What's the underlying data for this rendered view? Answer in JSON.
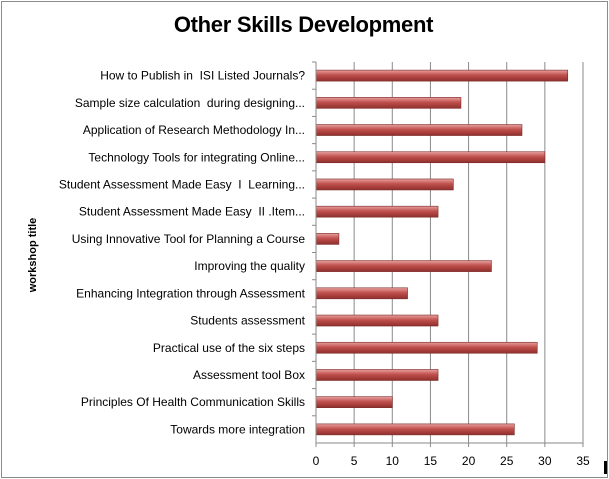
{
  "chart_data": {
    "type": "bar",
    "orientation": "horizontal",
    "title": "Other Skills Development",
    "ylabel": "workshop title",
    "xlabel": "",
    "xlim": [
      0,
      35
    ],
    "xticks": [
      "0",
      "5",
      "10",
      "15",
      "20",
      "25",
      "30",
      "35"
    ],
    "grid": true,
    "legend": "none",
    "bar_color": "#c0504d",
    "categories": [
      "How to Publish in  ISI Listed Journals?",
      "Sample size calculation  during designing...",
      "Application of Research Methodology In...",
      "Technology Tools for integrating Online...",
      "Student Assessment Made Easy  I  Learning...",
      "Student Assessment Made Easy  II .Item...",
      "Using Innovative Tool for Planning a Course",
      "Improving the quality",
      "Enhancing Integration through Assessment",
      "Students assessment",
      "Practical use of the six steps",
      "Assessment tool Box",
      "Principles Of Health Communication Skills",
      "Towards more integration"
    ],
    "values": [
      33,
      19,
      27,
      30,
      18,
      16,
      3,
      23,
      12,
      16,
      29,
      16,
      10,
      26
    ]
  }
}
